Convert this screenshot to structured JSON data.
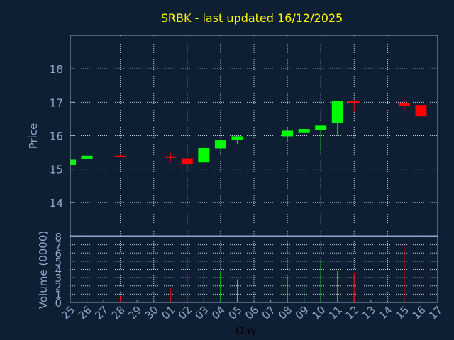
{
  "chart_data": {
    "type": "candlestick",
    "title": "SRBK - last updated 16/12/2025",
    "xlabel": "Day",
    "price_ylabel": "Price",
    "volume_ylabel": "Volume (0000)",
    "x_ticks": [
      "25",
      "26",
      "27",
      "28",
      "29",
      "30",
      "01",
      "02",
      "03",
      "04",
      "05",
      "06",
      "07",
      "08",
      "09",
      "10",
      "11",
      "12",
      "13",
      "14",
      "15",
      "16",
      "17"
    ],
    "price_ylim": [
      13.0,
      19.0
    ],
    "price_ticks": [
      14,
      15,
      16,
      17,
      18
    ],
    "volume_ylim": [
      0,
      8
    ],
    "volume_ticks": [
      0,
      1,
      2,
      3,
      4,
      5,
      6,
      7,
      8
    ],
    "grid": true,
    "up_color": "#00ff00",
    "down_color": "#ff0000",
    "candles": [
      {
        "day": "25",
        "open": 15.12,
        "high": 15.28,
        "low": 15.12,
        "close": 15.28
      },
      {
        "day": "26",
        "open": 15.3,
        "high": 15.4,
        "low": 15.3,
        "close": 15.4
      },
      {
        "day": "28",
        "open": 15.4,
        "high": 15.43,
        "low": 15.37,
        "close": 15.38
      },
      {
        "day": "01",
        "open": 15.38,
        "high": 15.48,
        "low": 15.2,
        "close": 15.35
      },
      {
        "day": "02",
        "open": 15.32,
        "high": 15.38,
        "low": 15.14,
        "close": 15.14
      },
      {
        "day": "03",
        "open": 15.2,
        "high": 15.75,
        "low": 15.2,
        "close": 15.63
      },
      {
        "day": "04",
        "open": 15.62,
        "high": 15.88,
        "low": 15.62,
        "close": 15.86
      },
      {
        "day": "05",
        "open": 15.88,
        "high": 16.0,
        "low": 15.75,
        "close": 15.98
      },
      {
        "day": "08",
        "open": 15.98,
        "high": 16.25,
        "low": 15.8,
        "close": 16.15
      },
      {
        "day": "09",
        "open": 16.08,
        "high": 16.22,
        "low": 16.05,
        "close": 16.2
      },
      {
        "day": "10",
        "open": 16.18,
        "high": 16.32,
        "low": 15.55,
        "close": 16.3
      },
      {
        "day": "11",
        "open": 16.38,
        "high": 17.05,
        "low": 16.0,
        "close": 17.03
      },
      {
        "day": "12",
        "open": 17.03,
        "high": 17.06,
        "low": 16.72,
        "close": 17.0
      },
      {
        "day": "15",
        "open": 16.98,
        "high": 17.1,
        "low": 16.75,
        "close": 16.9
      },
      {
        "day": "16",
        "open": 16.92,
        "high": 16.92,
        "low": 16.45,
        "close": 16.58
      }
    ],
    "volume": [
      {
        "day": "25",
        "value": 0.0
      },
      {
        "day": "26",
        "value": 2.0
      },
      {
        "day": "28",
        "value": 0.8
      },
      {
        "day": "01",
        "value": 1.8
      },
      {
        "day": "02",
        "value": 3.6
      },
      {
        "day": "03",
        "value": 4.5
      },
      {
        "day": "04",
        "value": 3.8
      },
      {
        "day": "05",
        "value": 2.8
      },
      {
        "day": "08",
        "value": 3.0
      },
      {
        "day": "09",
        "value": 2.0
      },
      {
        "day": "10",
        "value": 5.0
      },
      {
        "day": "11",
        "value": 3.8
      },
      {
        "day": "12",
        "value": 3.6
      },
      {
        "day": "15",
        "value": 6.9
      },
      {
        "day": "16",
        "value": 5.1
      }
    ]
  }
}
